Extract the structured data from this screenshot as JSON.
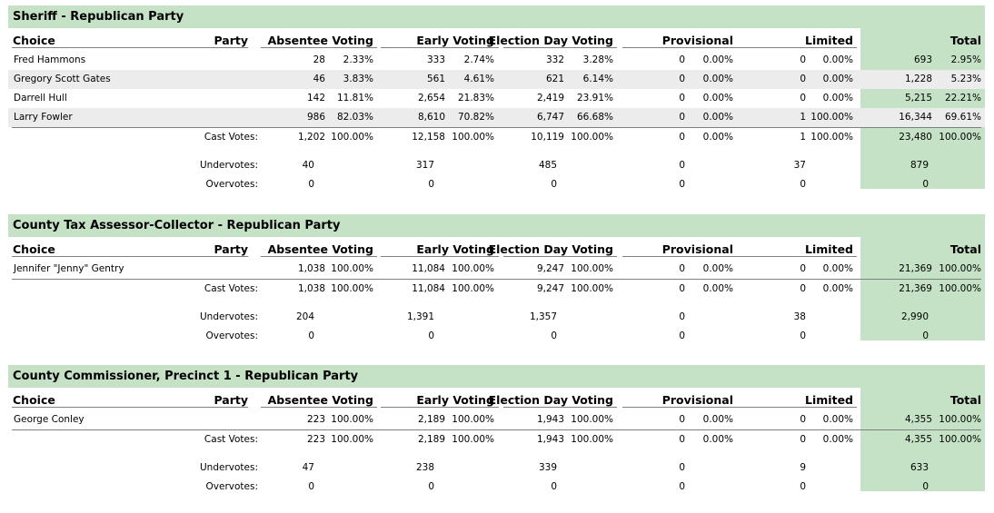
{
  "headers": {
    "choice": "Choice",
    "party": "Party",
    "absentee": "Absentee Voting",
    "early": "Early Voting",
    "election_day": "Election Day Voting",
    "provisional": "Provisional",
    "limited": "Limited",
    "total": "Total"
  },
  "labels": {
    "cast": "Cast Votes:",
    "under": "Undervotes:",
    "over": "Overvotes:"
  },
  "races": [
    {
      "title": "Sheriff - Republican Party",
      "candidates": [
        {
          "name": "Fred Hammons",
          "abs": "28",
          "abs_pct": "2.33%",
          "early": "333",
          "early_pct": "2.74%",
          "eday": "332",
          "eday_pct": "3.28%",
          "prov": "0",
          "prov_pct": "0.00%",
          "lim": "0",
          "lim_pct": "0.00%",
          "total": "693",
          "total_pct": "2.95%"
        },
        {
          "name": "Gregory Scott Gates",
          "abs": "46",
          "abs_pct": "3.83%",
          "early": "561",
          "early_pct": "4.61%",
          "eday": "621",
          "eday_pct": "6.14%",
          "prov": "0",
          "prov_pct": "0.00%",
          "lim": "0",
          "lim_pct": "0.00%",
          "total": "1,228",
          "total_pct": "5.23%"
        },
        {
          "name": "Darrell Hull",
          "abs": "142",
          "abs_pct": "11.81%",
          "early": "2,654",
          "early_pct": "21.83%",
          "eday": "2,419",
          "eday_pct": "23.91%",
          "prov": "0",
          "prov_pct": "0.00%",
          "lim": "0",
          "lim_pct": "0.00%",
          "total": "5,215",
          "total_pct": "22.21%"
        },
        {
          "name": "Larry Fowler",
          "abs": "986",
          "abs_pct": "82.03%",
          "early": "8,610",
          "early_pct": "70.82%",
          "eday": "6,747",
          "eday_pct": "66.68%",
          "prov": "0",
          "prov_pct": "0.00%",
          "lim": "1",
          "lim_pct": "100.00%",
          "total": "16,344",
          "total_pct": "69.61%"
        }
      ],
      "cast": {
        "abs": "1,202",
        "abs_pct": "100.00%",
        "early": "12,158",
        "early_pct": "100.00%",
        "eday": "10,119",
        "eday_pct": "100.00%",
        "prov": "0",
        "prov_pct": "0.00%",
        "lim": "1",
        "lim_pct": "100.00%",
        "total": "23,480",
        "total_pct": "100.00%"
      },
      "under": {
        "abs": "40",
        "early": "317",
        "eday": "485",
        "prov": "0",
        "lim": "37",
        "total": "879"
      },
      "over": {
        "abs": "0",
        "early": "0",
        "eday": "0",
        "prov": "0",
        "lim": "0",
        "total": "0"
      }
    },
    {
      "title": "County Tax Assessor-Collector - Republican Party",
      "candidates": [
        {
          "name": "Jennifer \"Jenny\" Gentry",
          "abs": "1,038",
          "abs_pct": "100.00%",
          "early": "11,084",
          "early_pct": "100.00%",
          "eday": "9,247",
          "eday_pct": "100.00%",
          "prov": "0",
          "prov_pct": "0.00%",
          "lim": "0",
          "lim_pct": "0.00%",
          "total": "21,369",
          "total_pct": "100.00%"
        }
      ],
      "cast": {
        "abs": "1,038",
        "abs_pct": "100.00%",
        "early": "11,084",
        "early_pct": "100.00%",
        "eday": "9,247",
        "eday_pct": "100.00%",
        "prov": "0",
        "prov_pct": "0.00%",
        "lim": "0",
        "lim_pct": "0.00%",
        "total": "21,369",
        "total_pct": "100.00%"
      },
      "under": {
        "abs": "204",
        "early": "1,391",
        "eday": "1,357",
        "prov": "0",
        "lim": "38",
        "total": "2,990"
      },
      "over": {
        "abs": "0",
        "early": "0",
        "eday": "0",
        "prov": "0",
        "lim": "0",
        "total": "0"
      }
    },
    {
      "title": "County Commissioner, Precinct 1 - Republican Party",
      "candidates": [
        {
          "name": "George Conley",
          "abs": "223",
          "abs_pct": "100.00%",
          "early": "2,189",
          "early_pct": "100.00%",
          "eday": "1,943",
          "eday_pct": "100.00%",
          "prov": "0",
          "prov_pct": "0.00%",
          "lim": "0",
          "lim_pct": "0.00%",
          "total": "4,355",
          "total_pct": "100.00%"
        }
      ],
      "cast": {
        "abs": "223",
        "abs_pct": "100.00%",
        "early": "2,189",
        "early_pct": "100.00%",
        "eday": "1,943",
        "eday_pct": "100.00%",
        "prov": "0",
        "prov_pct": "0.00%",
        "lim": "0",
        "lim_pct": "0.00%",
        "total": "4,355",
        "total_pct": "100.00%"
      },
      "under": {
        "abs": "47",
        "early": "238",
        "eday": "339",
        "prov": "0",
        "lim": "9",
        "total": "633"
      },
      "over": {
        "abs": "0",
        "early": "0",
        "eday": "0",
        "prov": "0",
        "lim": "0",
        "total": "0"
      }
    }
  ]
}
